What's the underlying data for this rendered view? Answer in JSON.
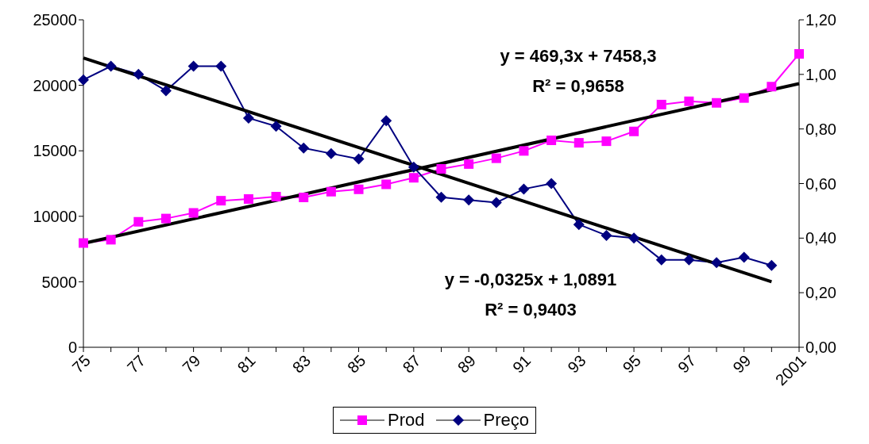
{
  "chart_data": {
    "type": "line",
    "categories": [
      "75",
      null,
      "77",
      null,
      "79",
      null,
      "81",
      null,
      "83",
      null,
      "85",
      null,
      "87",
      null,
      "89",
      null,
      "91",
      null,
      "93",
      null,
      "95",
      null,
      "97",
      null,
      "99",
      null,
      "2001"
    ],
    "series": [
      {
        "name": "Prod",
        "color": "#ff00ff",
        "marker": "square",
        "values": [
          7960,
          8210,
          9580,
          9830,
          10260,
          11190,
          11320,
          11500,
          11440,
          11880,
          12060,
          12440,
          12940,
          13620,
          13990,
          14430,
          14990,
          15800,
          15610,
          15730,
          16480,
          18530,
          18780,
          18660,
          19030,
          19900,
          22400
        ]
      },
      {
        "name": "Preço",
        "color": "#000080",
        "marker": "diamond",
        "axis": "y2",
        "values": [
          0.98,
          1.03,
          1.0,
          0.94,
          1.03,
          1.03,
          0.84,
          0.81,
          0.73,
          0.71,
          0.69,
          0.83,
          0.66,
          0.55,
          0.54,
          0.53,
          0.58,
          0.6,
          0.45,
          0.41,
          0.4,
          0.32,
          0.32,
          0.31,
          0.33,
          0.3,
          null
        ]
      },
      {
        "color": "#000000",
        "marker": "none",
        "values": [
          7930,
          null,
          null,
          null,
          null,
          null,
          null,
          null,
          null,
          null,
          null,
          null,
          null,
          null,
          null,
          null,
          null,
          null,
          null,
          null,
          null,
          null,
          null,
          null,
          null,
          null,
          20130
        ]
      },
      {
        "color": "#000000",
        "marker": "none",
        "axis": "y2",
        "values": [
          1.06,
          null,
          null,
          null,
          null,
          null,
          null,
          null,
          null,
          null,
          null,
          null,
          null,
          null,
          null,
          null,
          null,
          null,
          null,
          null,
          null,
          null,
          null,
          null,
          null,
          0.24,
          null
        ]
      }
    ],
    "ylim": [
      0,
      25000
    ],
    "yticks": [
      0,
      5000,
      10000,
      15000,
      20000,
      25000
    ],
    "y2lim": [
      0,
      1.2
    ],
    "y2ticks": [
      {
        "value": 0,
        "label": "0,00"
      },
      {
        "value": 0.2,
        "label": "0,20"
      },
      {
        "value": 0.4,
        "label": "0,40"
      },
      {
        "value": 0.6,
        "label": "0,60"
      },
      {
        "value": 0.8,
        "label": "0,80"
      },
      {
        "value": 1.0,
        "label": "1,00"
      },
      {
        "value": 1.2,
        "label": "1,20"
      }
    ],
    "annotations": [
      "y = 469,3x + 7458,3",
      "R² = 0,9658",
      "y = -0,0325x + 1,0891",
      "R² = 0,9403"
    ],
    "grid": false,
    "legend": "bottom"
  }
}
